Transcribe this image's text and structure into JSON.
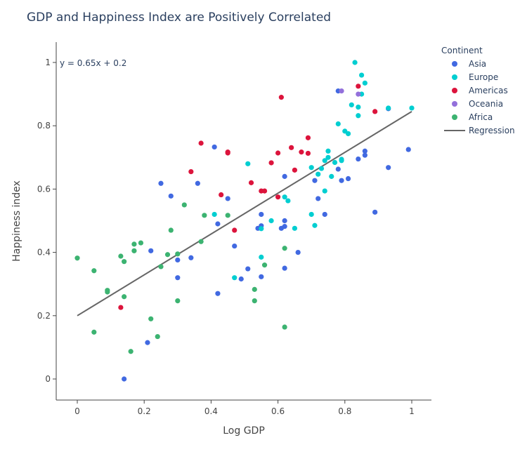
{
  "chart_data": {
    "type": "scatter",
    "title": "GDP and Happiness Index are Positively Correlated",
    "xlabel": "Log GDP",
    "ylabel": "Happiness index",
    "xlim": [
      -0.065,
      1.06
    ],
    "ylim": [
      -0.065,
      1.065
    ],
    "x_ticks": [
      0,
      0.2,
      0.4,
      0.6,
      0.8,
      1
    ],
    "x_tick_labels": [
      "0",
      "0.2",
      "0.4",
      "0.6",
      "0.8",
      "1"
    ],
    "y_ticks": [
      0,
      0.2,
      0.4,
      0.6,
      0.8,
      1
    ],
    "y_tick_labels": [
      "0",
      "0.2",
      "0.4",
      "0.6",
      "0.8",
      "1"
    ],
    "grid": false,
    "legend": {
      "title": "Continent",
      "placement": "top-right outside"
    },
    "annotation": "y = 0.65x + 0.2",
    "regression": {
      "name": "Regression",
      "color": "#666666",
      "x": [
        0,
        1
      ],
      "y": [
        0.2,
        0.845
      ]
    },
    "series": [
      {
        "name": "Asia",
        "color": "#4169e1",
        "points": [
          [
            0.14,
            0.0
          ],
          [
            0.21,
            0.115
          ],
          [
            0.22,
            0.405
          ],
          [
            0.25,
            0.618
          ],
          [
            0.28,
            0.578
          ],
          [
            0.3,
            0.376
          ],
          [
            0.3,
            0.32
          ],
          [
            0.34,
            0.383
          ],
          [
            0.36,
            0.618
          ],
          [
            0.41,
            0.733
          ],
          [
            0.42,
            0.49
          ],
          [
            0.42,
            0.27
          ],
          [
            0.45,
            0.57
          ],
          [
            0.47,
            0.42
          ],
          [
            0.49,
            0.316
          ],
          [
            0.51,
            0.348
          ],
          [
            0.54,
            0.476
          ],
          [
            0.55,
            0.52
          ],
          [
            0.55,
            0.484
          ],
          [
            0.55,
            0.323
          ],
          [
            0.61,
            0.476
          ],
          [
            0.62,
            0.482
          ],
          [
            0.62,
            0.35
          ],
          [
            0.62,
            0.5
          ],
          [
            0.62,
            0.64
          ],
          [
            0.66,
            0.4
          ],
          [
            0.71,
            0.627
          ],
          [
            0.72,
            0.57
          ],
          [
            0.74,
            0.52
          ],
          [
            0.78,
            0.663
          ],
          [
            0.78,
            0.91
          ],
          [
            0.79,
            0.627
          ],
          [
            0.81,
            0.633
          ],
          [
            0.84,
            0.695
          ],
          [
            0.86,
            0.72
          ],
          [
            0.86,
            0.707
          ],
          [
            0.89,
            0.527
          ],
          [
            0.93,
            0.668
          ],
          [
            0.93,
            0.854
          ],
          [
            0.99,
            0.725
          ]
        ]
      },
      {
        "name": "Europe",
        "color": "#00ced1",
        "points": [
          [
            0.41,
            0.52
          ],
          [
            0.47,
            0.32
          ],
          [
            0.51,
            0.68
          ],
          [
            0.55,
            0.385
          ],
          [
            0.55,
            0.475
          ],
          [
            0.58,
            0.5
          ],
          [
            0.62,
            0.575
          ],
          [
            0.63,
            0.563
          ],
          [
            0.65,
            0.476
          ],
          [
            0.7,
            0.52
          ],
          [
            0.7,
            0.668
          ],
          [
            0.71,
            0.485
          ],
          [
            0.72,
            0.647
          ],
          [
            0.73,
            0.665
          ],
          [
            0.74,
            0.594
          ],
          [
            0.74,
            0.69
          ],
          [
            0.75,
            0.72
          ],
          [
            0.75,
            0.7
          ],
          [
            0.76,
            0.64
          ],
          [
            0.77,
            0.684
          ],
          [
            0.78,
            0.806
          ],
          [
            0.79,
            0.694
          ],
          [
            0.79,
            0.69
          ],
          [
            0.8,
            0.783
          ],
          [
            0.81,
            0.775
          ],
          [
            0.82,
            0.866
          ],
          [
            0.83,
            1.0
          ],
          [
            0.84,
            0.832
          ],
          [
            0.84,
            0.859
          ],
          [
            0.85,
            0.9
          ],
          [
            0.85,
            0.96
          ],
          [
            0.86,
            0.935
          ],
          [
            0.93,
            0.856
          ],
          [
            1.0,
            0.856
          ]
        ]
      },
      {
        "name": "Americas",
        "color": "#dc143c",
        "points": [
          [
            0.13,
            0.226
          ],
          [
            0.34,
            0.655
          ],
          [
            0.37,
            0.745
          ],
          [
            0.43,
            0.582
          ],
          [
            0.45,
            0.717
          ],
          [
            0.45,
            0.714
          ],
          [
            0.47,
            0.47
          ],
          [
            0.52,
            0.62
          ],
          [
            0.55,
            0.594
          ],
          [
            0.56,
            0.594
          ],
          [
            0.58,
            0.683
          ],
          [
            0.6,
            0.714
          ],
          [
            0.6,
            0.575
          ],
          [
            0.61,
            0.89
          ],
          [
            0.64,
            0.731
          ],
          [
            0.65,
            0.66
          ],
          [
            0.67,
            0.717
          ],
          [
            0.69,
            0.713
          ],
          [
            0.69,
            0.762
          ],
          [
            0.84,
            0.925
          ],
          [
            0.89,
            0.845
          ]
        ]
      },
      {
        "name": "Oceania",
        "color": "#9370db",
        "points": [
          [
            0.79,
            0.91
          ],
          [
            0.84,
            0.9
          ]
        ]
      },
      {
        "name": "Africa",
        "color": "#3cb371",
        "points": [
          [
            0.0,
            0.382
          ],
          [
            0.05,
            0.148
          ],
          [
            0.05,
            0.342
          ],
          [
            0.09,
            0.28
          ],
          [
            0.09,
            0.275
          ],
          [
            0.13,
            0.388
          ],
          [
            0.14,
            0.371
          ],
          [
            0.14,
            0.26
          ],
          [
            0.16,
            0.087
          ],
          [
            0.17,
            0.405
          ],
          [
            0.17,
            0.426
          ],
          [
            0.19,
            0.43
          ],
          [
            0.22,
            0.19
          ],
          [
            0.24,
            0.134
          ],
          [
            0.25,
            0.355
          ],
          [
            0.27,
            0.393
          ],
          [
            0.28,
            0.47
          ],
          [
            0.3,
            0.247
          ],
          [
            0.3,
            0.395
          ],
          [
            0.32,
            0.55
          ],
          [
            0.37,
            0.434
          ],
          [
            0.38,
            0.517
          ],
          [
            0.45,
            0.517
          ],
          [
            0.53,
            0.247
          ],
          [
            0.53,
            0.283
          ],
          [
            0.56,
            0.36
          ],
          [
            0.62,
            0.413
          ],
          [
            0.62,
            0.164
          ]
        ]
      }
    ]
  }
}
